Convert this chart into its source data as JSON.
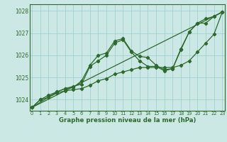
{
  "xlabel": "Graphe pression niveau de la mer (hPa)",
  "bg_color": "#cce8e4",
  "grid_color": "#99cccc",
  "line_color": "#2d6a2d",
  "ylim": [
    1023.5,
    1028.3
  ],
  "xlim": [
    -0.3,
    23.3
  ],
  "yticks": [
    1024,
    1025,
    1026,
    1027,
    1028
  ],
  "xticks": [
    0,
    1,
    2,
    3,
    4,
    5,
    6,
    7,
    8,
    9,
    10,
    11,
    12,
    13,
    14,
    15,
    16,
    17,
    18,
    19,
    20,
    21,
    22,
    23
  ],
  "series1_x": [
    0,
    1,
    2,
    3,
    4,
    5,
    6,
    7,
    8,
    9,
    10,
    11,
    12,
    13,
    14,
    15,
    16,
    17,
    18,
    19,
    20,
    21,
    22,
    23
  ],
  "series1_y": [
    1023.65,
    1024.0,
    1024.2,
    1024.35,
    1024.5,
    1024.55,
    1024.85,
    1025.55,
    1026.0,
    1026.1,
    1026.65,
    1026.75,
    1026.2,
    1025.95,
    1025.9,
    1025.55,
    1025.35,
    1025.4,
    1026.3,
    1027.05,
    1027.45,
    1027.65,
    1027.75,
    1027.95
  ],
  "series2_x": [
    0,
    3,
    4,
    5,
    6,
    7,
    8,
    9,
    10,
    11,
    12,
    13,
    14,
    15,
    16,
    17,
    18,
    19,
    20,
    21,
    22,
    23
  ],
  "series2_y": [
    1023.65,
    1024.35,
    1024.5,
    1024.6,
    1024.7,
    1025.5,
    1025.75,
    1026.0,
    1026.55,
    1026.7,
    1026.15,
    1025.75,
    1025.5,
    1025.5,
    1025.3,
    1025.4,
    1026.25,
    1027.05,
    1027.45,
    1027.45,
    1027.75,
    1027.95
  ],
  "series3_x": [
    0,
    1,
    2,
    3,
    4,
    5,
    6,
    7,
    8,
    9,
    10,
    11,
    12,
    13,
    14,
    15,
    16,
    17,
    18,
    19,
    20,
    21,
    22,
    23
  ],
  "series3_y": [
    1023.65,
    1024.0,
    1024.1,
    1024.3,
    1024.4,
    1024.45,
    1024.5,
    1024.65,
    1024.85,
    1024.95,
    1025.15,
    1025.25,
    1025.35,
    1025.45,
    1025.45,
    1025.45,
    1025.45,
    1025.45,
    1025.55,
    1025.75,
    1026.15,
    1026.55,
    1026.95,
    1027.95
  ],
  "series4_x": [
    0,
    23
  ],
  "series4_y": [
    1023.65,
    1027.95
  ]
}
